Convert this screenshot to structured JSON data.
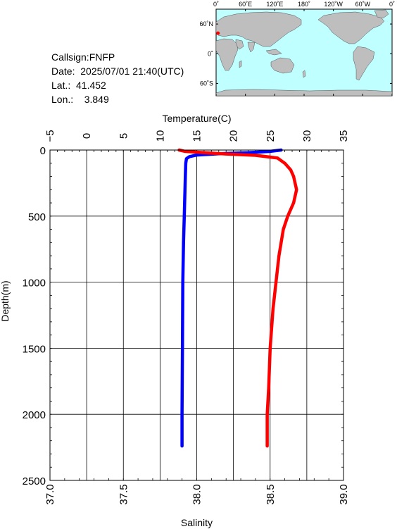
{
  "station": {
    "callsign": "Callsign:FNFP",
    "date": "Date:  2025/07/01 21:40(UTC)",
    "lat": "Lat.:  41.452",
    "lon": "Lon.:    3.849"
  },
  "map": {
    "lon_labels": [
      "0˚",
      "60˚E",
      "120˚E",
      "180˚",
      "120˚W",
      "60˚W",
      "0˚"
    ],
    "lat_labels": [
      "60˚N",
      "0˚",
      "60˚S"
    ],
    "colors": {
      "ocean": "#bfffff",
      "land": "#bebebe",
      "marker": "#ff0000"
    },
    "marker": {
      "lat": 41.452,
      "lon": 3.849
    }
  },
  "chart_data": {
    "type": "line",
    "title": "",
    "ylabel": "Depth(m)",
    "ylim": [
      0,
      2500
    ],
    "y_inverted": true,
    "y_ticks": [
      "0",
      "500",
      "1000",
      "1500",
      "2000",
      "2500"
    ],
    "top_axis": {
      "label": "Temperature(C)",
      "range": [
        -5,
        35
      ],
      "ticks": [
        "−5",
        "0",
        "5",
        "10",
        "15",
        "20",
        "25",
        "30",
        "35"
      ]
    },
    "bottom_axis": {
      "label": "Salinity",
      "range": [
        37.0,
        39.0
      ],
      "ticks": [
        "37.0",
        "37.5",
        "38.0",
        "38.5",
        "39.0"
      ]
    },
    "grid": true,
    "series": [
      {
        "axis": "top",
        "color": "#0000ff",
        "points": [
          [
            26.5,
            0
          ],
          [
            25,
            10
          ],
          [
            22,
            20
          ],
          [
            18,
            28
          ],
          [
            15,
            38
          ],
          [
            14,
            50
          ],
          [
            13.6,
            65
          ],
          [
            13.5,
            100
          ],
          [
            13.45,
            200
          ],
          [
            13.4,
            300
          ],
          [
            13.3,
            500
          ],
          [
            13.2,
            700
          ],
          [
            13.1,
            1000
          ],
          [
            13.05,
            1500
          ],
          [
            13.0,
            2000
          ],
          [
            13.0,
            2240
          ]
        ]
      },
      {
        "axis": "bottom",
        "color": "#ff0000",
        "points": [
          [
            37.88,
            0
          ],
          [
            37.92,
            10
          ],
          [
            38.05,
            20
          ],
          [
            38.2,
            30
          ],
          [
            38.4,
            40
          ],
          [
            38.55,
            60
          ],
          [
            38.6,
            100
          ],
          [
            38.64,
            150
          ],
          [
            38.66,
            200
          ],
          [
            38.68,
            300
          ],
          [
            38.66,
            400
          ],
          [
            38.62,
            500
          ],
          [
            38.59,
            600
          ],
          [
            38.56,
            800
          ],
          [
            38.54,
            1000
          ],
          [
            38.52,
            1200
          ],
          [
            38.5,
            1500
          ],
          [
            38.49,
            1800
          ],
          [
            38.48,
            2000
          ],
          [
            38.48,
            2240
          ]
        ]
      }
    ]
  }
}
